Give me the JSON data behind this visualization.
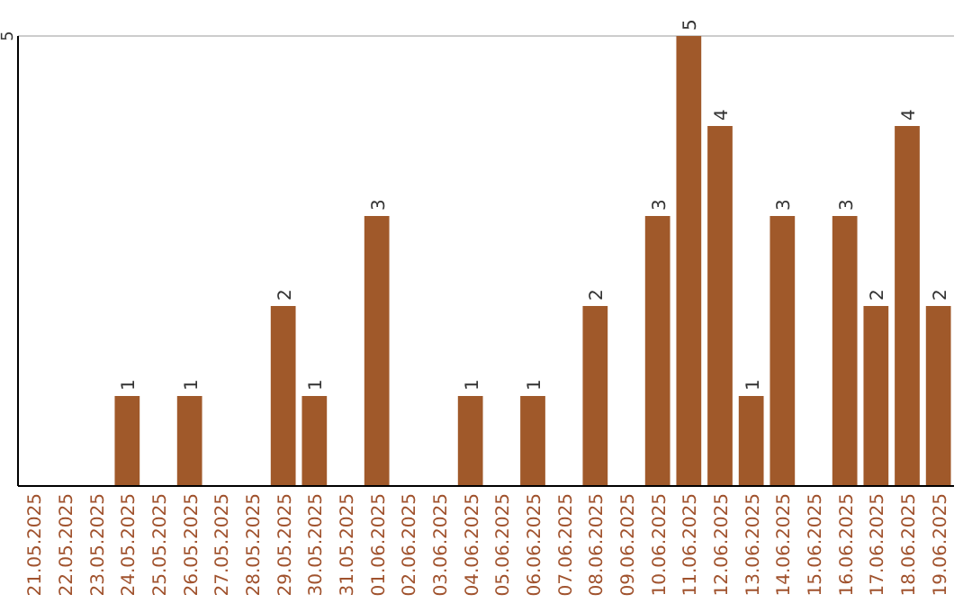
{
  "chart_data": {
    "type": "bar",
    "categories": [
      "21.05.2025",
      "22.05.2025",
      "23.05.2025",
      "24.05.2025",
      "25.05.2025",
      "26.05.2025",
      "27.05.2025",
      "28.05.2025",
      "29.05.2025",
      "30.05.2025",
      "31.05.2025",
      "01.06.2025",
      "02.06.2025",
      "03.06.2025",
      "04.06.2025",
      "05.06.2025",
      "06.06.2025",
      "07.06.2025",
      "08.06.2025",
      "09.06.2025",
      "10.06.2025",
      "11.06.2025",
      "12.06.2025",
      "13.06.2025",
      "14.06.2025",
      "15.06.2025",
      "16.06.2025",
      "17.06.2025",
      "18.06.2025",
      "19.06.2025"
    ],
    "values": [
      0,
      0,
      0,
      1,
      0,
      1,
      0,
      0,
      2,
      1,
      0,
      3,
      0,
      0,
      1,
      0,
      1,
      0,
      2,
      0,
      3,
      5,
      4,
      1,
      3,
      0,
      3,
      2,
      4,
      2
    ],
    "value_labels": [
      null,
      null,
      null,
      "1",
      null,
      "1",
      null,
      null,
      "2",
      "1",
      null,
      "3",
      null,
      null,
      "1",
      null,
      "1",
      null,
      "2",
      null,
      "3",
      "5",
      "4",
      "1",
      "3",
      null,
      "3",
      "2",
      "4",
      "2"
    ],
    "color": "#a0592a",
    "ylim": [
      0,
      5
    ],
    "yticks": [
      5
    ]
  }
}
